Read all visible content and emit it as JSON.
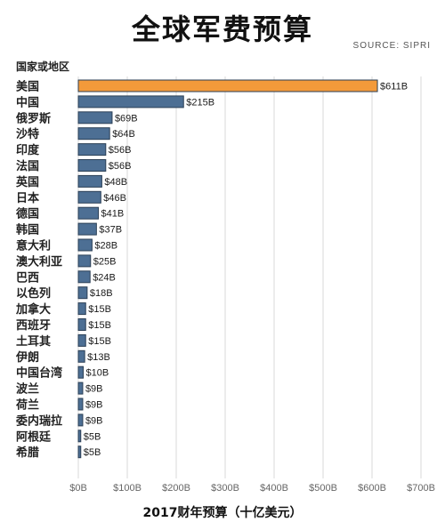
{
  "title": "全球军费预算",
  "source": "SOURCE: SIPRI",
  "category_header": "国家或地区",
  "colors": {
    "highlight": "#f39a3a",
    "bar": "#4d6f94",
    "bar_stroke": "#2b3f55",
    "grid": "#d9d9d9"
  },
  "chart_data": {
    "type": "bar",
    "orientation": "horizontal",
    "title": "全球军费预算",
    "xlabel": "2017财年预算（十亿美元）",
    "ylabel": "国家或地区",
    "categories": [
      "美国",
      "中国",
      "俄罗斯",
      "沙特",
      "印度",
      "法国",
      "英国",
      "日本",
      "德国",
      "韩国",
      "意大利",
      "澳大利亚",
      "巴西",
      "以色列",
      "加拿大",
      "西班牙",
      "土耳其",
      "伊朗",
      "中国台湾",
      "波兰",
      "荷兰",
      "委内瑞拉",
      "阿根廷",
      "希腊"
    ],
    "values": [
      611,
      215,
      69,
      64,
      56,
      56,
      48,
      46,
      41,
      37,
      28,
      25,
      24,
      18,
      15,
      15,
      15,
      13,
      10,
      9,
      9,
      9,
      5,
      5
    ],
    "value_labels": [
      "$611B",
      "$215B",
      "$69B",
      "$64B",
      "$56B",
      "$56B",
      "$48B",
      "$46B",
      "$41B",
      "$37B",
      "$28B",
      "$25B",
      "$24B",
      "$18B",
      "$15B",
      "$15B",
      "$15B",
      "$13B",
      "$10B",
      "$9B",
      "$9B",
      "$9B",
      "$5B",
      "$5B"
    ],
    "xlim": [
      0,
      700
    ],
    "ticks": [
      0,
      100,
      200,
      300,
      400,
      500,
      600,
      700
    ],
    "tick_labels": [
      "$0B",
      "$100B",
      "$200B",
      "$300B",
      "$400B",
      "$500B",
      "$600B",
      "$700B"
    ],
    "grid": true,
    "highlight_index": 0
  }
}
